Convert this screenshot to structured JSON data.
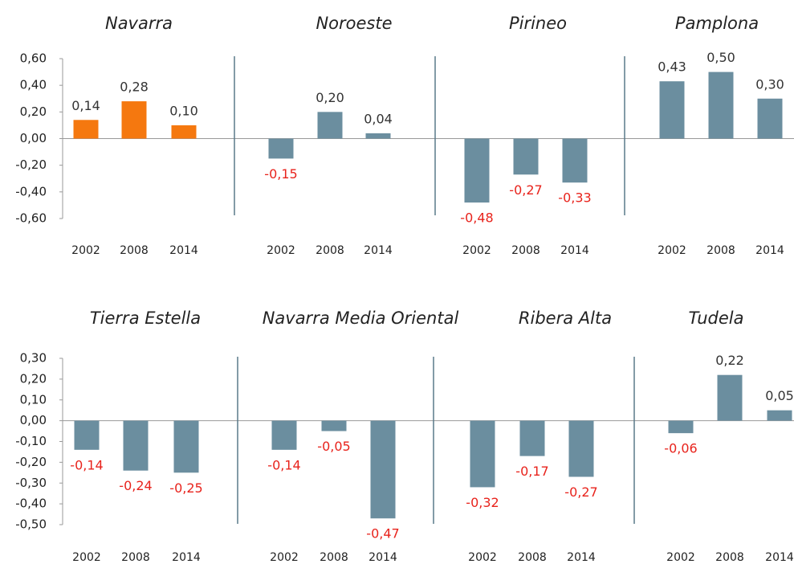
{
  "chart_data": [
    {
      "type": "bar",
      "ylim": [
        -0.6,
        0.6
      ],
      "yticks": [
        {
          "value": 0.6,
          "label": "0,60"
        },
        {
          "value": 0.4,
          "label": "0,40"
        },
        {
          "value": 0.2,
          "label": "0,20"
        },
        {
          "value": 0,
          "label": "0,00"
        },
        {
          "value": -0.2,
          "label": "-0,20"
        },
        {
          "value": -0.4,
          "label": "-0,40"
        },
        {
          "value": -0.6,
          "label": "-0,60"
        }
      ],
      "panels": [
        {
          "title": "Navarra",
          "color": "#f5780f",
          "categories": [
            "2002",
            "2008",
            "2014"
          ],
          "values": [
            0.14,
            0.28,
            0.1
          ],
          "value_labels": [
            "0,14",
            "0,28",
            "0,10"
          ]
        },
        {
          "title": "Noroeste",
          "color": "#6b8e9f",
          "categories": [
            "2002",
            "2008",
            "2014"
          ],
          "values": [
            -0.15,
            0.2,
            0.04
          ],
          "value_labels": [
            "-0,15",
            "0,20",
            "0,04"
          ]
        },
        {
          "title": "Pirineo",
          "color": "#6b8e9f",
          "categories": [
            "2002",
            "2008",
            "2014"
          ],
          "values": [
            -0.48,
            -0.27,
            -0.33
          ],
          "value_labels": [
            "-0,48",
            "-0,27",
            "-0,33"
          ]
        },
        {
          "title": "Pamplona",
          "color": "#6b8e9f",
          "categories": [
            "2002",
            "2008",
            "2014"
          ],
          "values": [
            0.43,
            0.5,
            0.3
          ],
          "value_labels": [
            "0,43",
            "0,50",
            "0,30"
          ]
        }
      ]
    },
    {
      "type": "bar",
      "ylim": [
        -0.5,
        0.3
      ],
      "yticks": [
        {
          "value": 0.3,
          "label": "0,30"
        },
        {
          "value": 0.2,
          "label": "0,20"
        },
        {
          "value": 0.1,
          "label": "0,10"
        },
        {
          "value": 0,
          "label": "0,00"
        },
        {
          "value": -0.1,
          "label": "-0,10"
        },
        {
          "value": -0.2,
          "label": "-0,20"
        },
        {
          "value": -0.3,
          "label": "-0,30"
        },
        {
          "value": -0.4,
          "label": "-0,40"
        },
        {
          "value": -0.5,
          "label": "-0,50"
        }
      ],
      "panels": [
        {
          "title": "Tierra Estella",
          "color": "#6b8e9f",
          "categories": [
            "2002",
            "2008",
            "2014"
          ],
          "values": [
            -0.14,
            -0.24,
            -0.25
          ],
          "value_labels": [
            "-0,14",
            "-0,24",
            "-0,25"
          ]
        },
        {
          "title": "Navarra Media Oriental",
          "color": "#6b8e9f",
          "categories": [
            "2002",
            "2008",
            "2014"
          ],
          "values": [
            -0.14,
            -0.05,
            -0.47
          ],
          "value_labels": [
            "-0,14",
            "-0,05",
            "-0,47"
          ]
        },
        {
          "title": "Ribera Alta",
          "color": "#6b8e9f",
          "categories": [
            "2002",
            "2008",
            "2014"
          ],
          "values": [
            -0.32,
            -0.17,
            -0.27
          ],
          "value_labels": [
            "-0,32",
            "-0,17",
            "-0,27"
          ]
        },
        {
          "title": "Tudela",
          "color": "#6b8e9f",
          "categories": [
            "2002",
            "2008",
            "2014"
          ],
          "values": [
            -0.06,
            0.22,
            0.05
          ],
          "value_labels": [
            "-0,06",
            "0,22",
            "0,05"
          ]
        }
      ]
    }
  ]
}
